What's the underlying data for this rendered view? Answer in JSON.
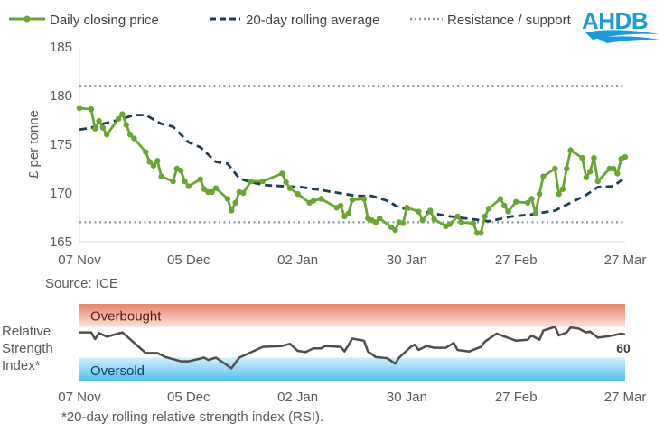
{
  "legend": {
    "price": "Daily closing price",
    "average": "20-day rolling average",
    "levels": "Resistance / support"
  },
  "logo": {
    "text": "AHDB",
    "color": "#1a9bd7"
  },
  "source": "Source: ICE",
  "footnote": "*20-day rolling relative strength index (RSI).",
  "colors": {
    "price": "#6aa533",
    "average": "#1d3c4d",
    "levels": "#8497a6",
    "rsi": "#4d4d4d",
    "overbought": "#e8866a",
    "oversold": "#5bc4f1"
  },
  "chart_data": [
    {
      "type": "line",
      "ylabel": "£ per tonne",
      "ylim": [
        165,
        185
      ],
      "yticks": [
        "185",
        "180",
        "175",
        "170",
        "165"
      ],
      "xticks": [
        "07 Nov",
        "05 Dec",
        "02 Jan",
        "30 Jan",
        "27 Feb",
        "27 Mar"
      ],
      "xtick_dates": [
        "11-07",
        "12-05",
        "01-02",
        "01-30",
        "02-27",
        "03-27"
      ],
      "resistance": 181,
      "support": 167,
      "series": [
        {
          "name": "Daily closing price",
          "style": "line-markers",
          "points": [
            [
              "11-07",
              178.7
            ],
            [
              "11-10",
              178.6
            ],
            [
              "11-11",
              176.6
            ],
            [
              "11-12",
              177.4
            ],
            [
              "11-13",
              176.7
            ],
            [
              "11-14",
              176.0
            ],
            [
              "11-17",
              177.6
            ],
            [
              "11-18",
              178.1
            ],
            [
              "11-19",
              177.0
            ],
            [
              "11-20",
              176.0
            ],
            [
              "11-21",
              175.6
            ],
            [
              "11-24",
              174.2
            ],
            [
              "11-25",
              173.2
            ],
            [
              "11-26",
              172.8
            ],
            [
              "11-27",
              173.3
            ],
            [
              "11-28",
              171.7
            ],
            [
              "12-01",
              171.2
            ],
            [
              "12-02",
              172.5
            ],
            [
              "12-03",
              172.3
            ],
            [
              "12-04",
              171.2
            ],
            [
              "12-05",
              170.7
            ],
            [
              "12-08",
              171.4
            ],
            [
              "12-09",
              170.4
            ],
            [
              "12-10",
              170.1
            ],
            [
              "12-11",
              170.1
            ],
            [
              "12-12",
              170.5
            ],
            [
              "12-15",
              169.4
            ],
            [
              "12-16",
              168.2
            ],
            [
              "12-17",
              169.0
            ],
            [
              "12-18",
              170.1
            ],
            [
              "12-19",
              170.0
            ],
            [
              "12-21",
              171.2
            ],
            [
              "12-24",
              171.2
            ],
            [
              "12-29",
              172.0
            ],
            [
              "12-30",
              171.1
            ],
            [
              "12-31",
              170.5
            ],
            [
              "01-02",
              169.9
            ],
            [
              "01-05",
              169.0
            ],
            [
              "01-06",
              169.2
            ],
            [
              "01-08",
              169.4
            ],
            [
              "01-12",
              168.5
            ],
            [
              "01-13",
              168.7
            ],
            [
              "01-14",
              167.6
            ],
            [
              "01-15",
              167.9
            ],
            [
              "01-16",
              169.3
            ],
            [
              "01-19",
              169.4
            ],
            [
              "01-20",
              167.4
            ],
            [
              "01-21",
              167.2
            ],
            [
              "01-22",
              167.0
            ],
            [
              "01-23",
              167.4
            ],
            [
              "01-26",
              166.5
            ],
            [
              "01-27",
              166.2
            ],
            [
              "01-28",
              167.0
            ],
            [
              "01-29",
              166.9
            ],
            [
              "01-30",
              168.5
            ],
            [
              "02-02",
              168.1
            ],
            [
              "02-03",
              167.2
            ],
            [
              "02-05",
              168.2
            ],
            [
              "02-06",
              167.3
            ],
            [
              "02-09",
              166.6
            ],
            [
              "02-10",
              166.8
            ],
            [
              "02-12",
              167.6
            ],
            [
              "02-13",
              167.0
            ],
            [
              "02-16",
              166.9
            ],
            [
              "02-17",
              165.9
            ],
            [
              "02-18",
              165.9
            ],
            [
              "02-19",
              167.6
            ],
            [
              "02-20",
              168.4
            ],
            [
              "02-23",
              169.4
            ],
            [
              "02-24",
              168.7
            ],
            [
              "02-25",
              168.1
            ],
            [
              "02-27",
              169.1
            ],
            [
              "03-02",
              169.0
            ],
            [
              "03-03",
              169.4
            ],
            [
              "03-04",
              167.9
            ],
            [
              "03-05",
              169.9
            ],
            [
              "03-06",
              171.7
            ],
            [
              "03-09",
              172.5
            ],
            [
              "03-10",
              169.9
            ],
            [
              "03-11",
              170.4
            ],
            [
              "03-12",
              172.5
            ],
            [
              "03-13",
              174.4
            ],
            [
              "03-16",
              173.6
            ],
            [
              "03-17",
              171.6
            ],
            [
              "03-18",
              172.2
            ],
            [
              "03-19",
              173.6
            ],
            [
              "03-20",
              171.2
            ],
            [
              "03-23",
              172.5
            ],
            [
              "03-24",
              172.5
            ],
            [
              "03-25",
              172.0
            ],
            [
              "03-26",
              173.5
            ],
            [
              "03-27",
              173.7
            ]
          ]
        },
        {
          "name": "20-day rolling average",
          "style": "dashed",
          "points": [
            [
              "11-07",
              176.5
            ],
            [
              "11-10",
              176.7
            ],
            [
              "11-13",
              177.1
            ],
            [
              "11-17",
              177.5
            ],
            [
              "11-21",
              178.0
            ],
            [
              "11-24",
              178.0
            ],
            [
              "11-28",
              177.1
            ],
            [
              "12-01",
              176.8
            ],
            [
              "12-05",
              175.2
            ],
            [
              "12-08",
              174.7
            ],
            [
              "12-12",
              173.2
            ],
            [
              "12-15",
              173.0
            ],
            [
              "12-18",
              171.5
            ],
            [
              "12-21",
              171.1
            ],
            [
              "12-25",
              170.8
            ],
            [
              "12-29",
              170.7
            ],
            [
              "01-03",
              170.6
            ],
            [
              "01-08",
              170.3
            ],
            [
              "01-14",
              169.9
            ],
            [
              "01-17",
              169.7
            ],
            [
              "01-21",
              169.7
            ],
            [
              "01-25",
              169.2
            ],
            [
              "01-28",
              168.5
            ],
            [
              "02-03",
              168.1
            ],
            [
              "02-10",
              167.6
            ],
            [
              "02-16",
              167.3
            ],
            [
              "02-20",
              167.1
            ],
            [
              "02-26",
              167.6
            ],
            [
              "03-03",
              167.8
            ],
            [
              "03-09",
              168.2
            ],
            [
              "03-13",
              169.0
            ],
            [
              "03-17",
              169.8
            ],
            [
              "03-20",
              170.6
            ],
            [
              "03-24",
              170.7
            ],
            [
              "03-27",
              171.6
            ]
          ]
        }
      ]
    },
    {
      "type": "line",
      "ylabel_lines": [
        "Relative",
        "Strength",
        "Index*"
      ],
      "ylim": [
        0,
        100
      ],
      "bands": [
        {
          "label": "Overbought",
          "from": 70,
          "to": 100
        },
        {
          "label": "Oversold",
          "from": 0,
          "to": 30
        }
      ],
      "xticks": [
        "07 Nov",
        "05 Dec",
        "02 Jan",
        "30 Jan",
        "27 Feb",
        "27 Mar"
      ],
      "last_value_label": "60",
      "series": [
        {
          "style": "line",
          "points": [
            [
              "11-07",
              62.8
            ],
            [
              "11-10",
              62.8
            ],
            [
              "11-11",
              54
            ],
            [
              "11-12",
              62
            ],
            [
              "11-14",
              57.2
            ],
            [
              "11-18",
              62.8
            ],
            [
              "11-24",
              36
            ],
            [
              "11-27",
              36
            ],
            [
              "11-29",
              30.8
            ],
            [
              "12-01",
              28
            ],
            [
              "12-03",
              25.2
            ],
            [
              "12-05",
              25.2
            ],
            [
              "12-09",
              30
            ],
            [
              "12-10",
              26.8
            ],
            [
              "12-12",
              30
            ],
            [
              "12-16",
              16
            ],
            [
              "12-18",
              30
            ],
            [
              "12-24",
              44
            ],
            [
              "12-29",
              45.2
            ],
            [
              "12-31",
              48
            ],
            [
              "01-02",
              38.8
            ],
            [
              "01-04",
              37.2
            ],
            [
              "01-06",
              42
            ],
            [
              "01-08",
              42
            ],
            [
              "01-09",
              45.2
            ],
            [
              "01-13",
              44
            ],
            [
              "01-14",
              38
            ],
            [
              "01-16",
              54.8
            ],
            [
              "01-19",
              52
            ],
            [
              "01-20",
              38
            ],
            [
              "01-22",
              30.8
            ],
            [
              "01-25",
              29.2
            ],
            [
              "01-27",
              22
            ],
            [
              "01-28",
              30
            ],
            [
              "01-31",
              44
            ],
            [
              "02-01",
              46.8
            ],
            [
              "02-02",
              40
            ],
            [
              "02-04",
              45.2
            ],
            [
              "02-06",
              42.8
            ],
            [
              "02-09",
              42.8
            ],
            [
              "02-11",
              49.2
            ],
            [
              "02-12",
              40
            ],
            [
              "02-15",
              38
            ],
            [
              "02-18",
              44
            ],
            [
              "02-19",
              50.8
            ],
            [
              "02-22",
              61.2
            ],
            [
              "02-27",
              52
            ],
            [
              "03-02",
              53.2
            ],
            [
              "03-03",
              58.8
            ],
            [
              "03-05",
              53.2
            ],
            [
              "03-06",
              65.2
            ],
            [
              "03-09",
              70
            ],
            [
              "03-10",
              58.8
            ],
            [
              "03-12",
              62.8
            ],
            [
              "03-13",
              69.2
            ],
            [
              "03-15",
              68
            ],
            [
              "03-17",
              62.8
            ],
            [
              "03-18",
              64
            ],
            [
              "03-20",
              56
            ],
            [
              "03-23",
              58
            ],
            [
              "03-26",
              61.2
            ],
            [
              "03-27",
              60
            ]
          ]
        }
      ]
    }
  ]
}
